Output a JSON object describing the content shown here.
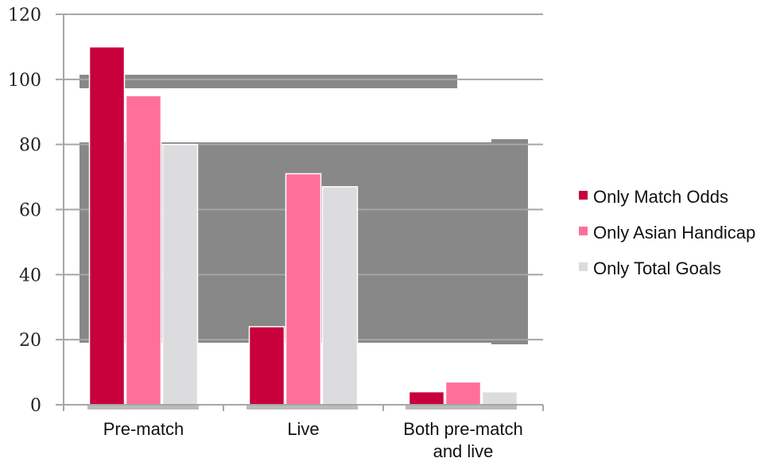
{
  "chart_data": {
    "type": "bar",
    "categories": [
      [
        "Pre-match"
      ],
      [
        "Live"
      ],
      [
        "Both pre-match",
        "and live"
      ]
    ],
    "series": [
      {
        "name": "Only Match Odds",
        "values": [
          110,
          24,
          4
        ],
        "color": "#c8003c"
      },
      {
        "name": "Only Asian Handicap",
        "values": [
          95,
          71,
          7
        ],
        "color": "#ff6f9a"
      },
      {
        "name": "Only Total Goals",
        "values": [
          80,
          67,
          4
        ],
        "color": "#dcdcde"
      }
    ],
    "title": "",
    "xlabel": "",
    "ylabel": "",
    "ylim": [
      0,
      120
    ],
    "yticks": [
      0,
      20,
      40,
      60,
      80,
      100,
      120
    ],
    "grid": true,
    "legend_position": "right"
  }
}
